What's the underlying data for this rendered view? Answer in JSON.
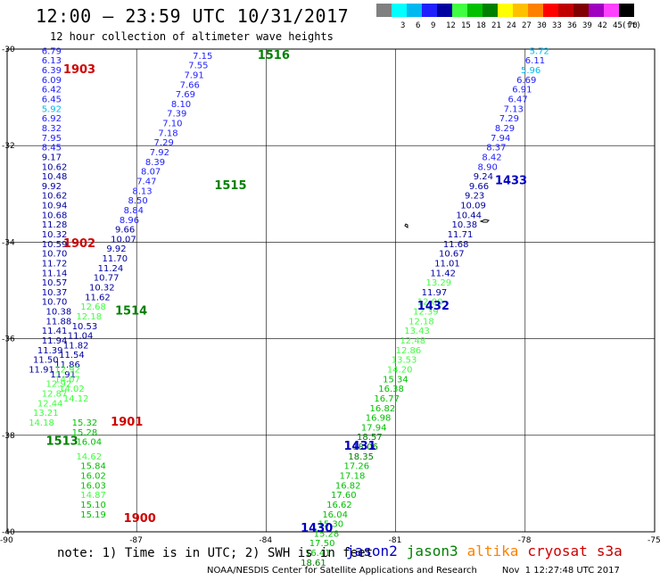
{
  "title": "12:00 – 23:59 UTC 10/31/2017",
  "subtitle": "12 hour collection of altimeter wave heights",
  "color_scale": {
    "unit": "(ft)",
    "bins": [
      {
        "label": "",
        "color": "#808080"
      },
      {
        "label": "3",
        "color": "#00ffff"
      },
      {
        "label": "6",
        "color": "#00b8f0"
      },
      {
        "label": "9",
        "color": "#2020ff"
      },
      {
        "label": "12",
        "color": "#0000a0"
      },
      {
        "label": "15",
        "color": "#40ff40"
      },
      {
        "label": "18",
        "color": "#00c000"
      },
      {
        "label": "21",
        "color": "#008000"
      },
      {
        "label": "24",
        "color": "#ffff00"
      },
      {
        "label": "27",
        "color": "#ffc000"
      },
      {
        "label": "30",
        "color": "#ff8000"
      },
      {
        "label": "33",
        "color": "#ff0000"
      },
      {
        "label": "36",
        "color": "#c00000"
      },
      {
        "label": "39",
        "color": "#800000"
      },
      {
        "label": "42",
        "color": "#a000c0"
      },
      {
        "label": "45",
        "color": "#ff40ff"
      },
      {
        "label": "70",
        "color": "#000000"
      }
    ]
  },
  "map": {
    "lon_range": [
      -90,
      -75
    ],
    "lat_range": [
      -40,
      -30
    ],
    "lon_ticks": [
      "-90",
      "-87",
      "-84",
      "-81",
      "-78",
      "-75"
    ],
    "lat_ticks": [
      "-30",
      "-32",
      "-34",
      "-36",
      "-38",
      "-40"
    ]
  },
  "chart_data": {
    "type": "scatter",
    "description_units": "significant wave height (ft) along satellite ground tracks",
    "pass_labels": [
      {
        "text": "1516",
        "color": "#008000",
        "lon": -84.2,
        "lat": -30.2
      },
      {
        "text": "1515",
        "color": "#008000",
        "lon": -85.2,
        "lat": -32.9
      },
      {
        "text": "1514",
        "color": "#008000",
        "lon": -87.5,
        "lat": -35.5
      },
      {
        "text": "1513",
        "color": "#008000",
        "lon": -89.1,
        "lat": -38.2
      },
      {
        "text": "1903",
        "color": "#d00000",
        "lon": -88.7,
        "lat": -30.5
      },
      {
        "text": "1902",
        "color": "#d00000",
        "lon": -88.7,
        "lat": -34.1
      },
      {
        "text": "1901",
        "color": "#d00000",
        "lon": -87.6,
        "lat": -37.8
      },
      {
        "text": "1900",
        "color": "#d00000",
        "lon": -87.3,
        "lat": -39.8
      },
      {
        "text": "1433",
        "color": "#0000c0",
        "lon": -78.7,
        "lat": -32.8
      },
      {
        "text": "1432",
        "color": "#0000c0",
        "lon": -80.5,
        "lat": -35.4
      },
      {
        "text": "1431",
        "color": "#0000c0",
        "lon": -82.2,
        "lat": -38.3
      },
      {
        "text": "1430",
        "color": "#0000c0",
        "lon": -83.2,
        "lat": -40.0
      }
    ],
    "tracks": [
      {
        "name": "jason3 1515-1516",
        "points": [
          {
            "lon": -85.7,
            "lat": -30.2,
            "v": "7.15"
          },
          {
            "lon": -85.8,
            "lat": -30.4,
            "v": "7.55"
          },
          {
            "lon": -85.9,
            "lat": -30.6,
            "v": "7.91"
          },
          {
            "lon": -86.0,
            "lat": -30.8,
            "v": "7.66"
          },
          {
            "lon": -86.1,
            "lat": -31.0,
            "v": "7.69"
          },
          {
            "lon": -86.2,
            "lat": -31.2,
            "v": "8.10"
          },
          {
            "lon": -86.3,
            "lat": -31.4,
            "v": "7.39"
          },
          {
            "lon": -86.4,
            "lat": -31.6,
            "v": "7.10"
          },
          {
            "lon": -86.5,
            "lat": -31.8,
            "v": "7.18"
          },
          {
            "lon": -86.6,
            "lat": -32.0,
            "v": "7.29"
          },
          {
            "lon": -86.7,
            "lat": -32.2,
            "v": "7.92"
          },
          {
            "lon": -86.8,
            "lat": -32.4,
            "v": "8.39"
          },
          {
            "lon": -86.9,
            "lat": -32.6,
            "v": "8.07"
          },
          {
            "lon": -87.0,
            "lat": -32.8,
            "v": "7.47"
          },
          {
            "lon": -87.1,
            "lat": -33.0,
            "v": "8.13"
          },
          {
            "lon": -87.2,
            "lat": -33.2,
            "v": "8.50"
          },
          {
            "lon": -87.3,
            "lat": -33.4,
            "v": "8.84"
          },
          {
            "lon": -87.4,
            "lat": -33.6,
            "v": "8.96"
          },
          {
            "lon": -87.5,
            "lat": -33.8,
            "v": "9.66"
          },
          {
            "lon": -87.6,
            "lat": -34.0,
            "v": "10.07"
          },
          {
            "lon": -87.7,
            "lat": -34.2,
            "v": "9.92"
          },
          {
            "lon": -87.8,
            "lat": -34.4,
            "v": "11.70"
          },
          {
            "lon": -87.9,
            "lat": -34.6,
            "v": "11.24"
          },
          {
            "lon": -88.0,
            "lat": -34.8,
            "v": "10.77"
          },
          {
            "lon": -88.1,
            "lat": -35.0,
            "v": "10.32"
          },
          {
            "lon": -88.2,
            "lat": -35.2,
            "v": "11.62"
          },
          {
            "lon": -88.3,
            "lat": -35.4,
            "v": "12.68"
          },
          {
            "lon": -88.4,
            "lat": -35.6,
            "v": "12.18"
          },
          {
            "lon": -88.5,
            "lat": -35.8,
            "v": "10.53"
          },
          {
            "lon": -88.6,
            "lat": -36.0,
            "v": "11.04"
          },
          {
            "lon": -88.7,
            "lat": -36.2,
            "v": "11.82"
          },
          {
            "lon": -88.8,
            "lat": -36.4,
            "v": "11.54"
          },
          {
            "lon": -88.9,
            "lat": -36.6,
            "v": "11.86"
          },
          {
            "lon": -89.0,
            "lat": -36.8,
            "v": "11.91"
          },
          {
            "lon": -89.1,
            "lat": -37.0,
            "v": "12.92"
          },
          {
            "lon": -89.2,
            "lat": -37.2,
            "v": "12.87"
          },
          {
            "lon": -89.3,
            "lat": -37.4,
            "v": "12.44"
          },
          {
            "lon": -89.4,
            "lat": -37.6,
            "v": "13.21"
          },
          {
            "lon": -89.5,
            "lat": -37.8,
            "v": "14.18"
          }
        ]
      },
      {
        "name": "jason2 1900-1903",
        "points": [
          {
            "lon": -89.2,
            "lat": -30.1,
            "v": "6.79"
          },
          {
            "lon": -89.2,
            "lat": -30.3,
            "v": "6.13"
          },
          {
            "lon": -89.2,
            "lat": -30.5,
            "v": "6.39"
          },
          {
            "lon": -89.2,
            "lat": -30.7,
            "v": "6.09"
          },
          {
            "lon": -89.2,
            "lat": -30.9,
            "v": "6.42"
          },
          {
            "lon": -89.2,
            "lat": -31.1,
            "v": "6.45"
          },
          {
            "lon": -89.2,
            "lat": -31.3,
            "v": "5.92"
          },
          {
            "lon": -89.2,
            "lat": -31.5,
            "v": "6.92"
          },
          {
            "lon": -89.2,
            "lat": -31.7,
            "v": "8.32"
          },
          {
            "lon": -89.2,
            "lat": -31.9,
            "v": "7.95"
          },
          {
            "lon": -89.2,
            "lat": -32.1,
            "v": "8.45"
          },
          {
            "lon": -89.2,
            "lat": -32.3,
            "v": "9.17"
          },
          {
            "lon": -89.2,
            "lat": -32.5,
            "v": "10.62"
          },
          {
            "lon": -89.2,
            "lat": -32.7,
            "v": "10.48"
          },
          {
            "lon": -89.2,
            "lat": -32.9,
            "v": "9.92"
          },
          {
            "lon": -89.2,
            "lat": -33.1,
            "v": "10.62"
          },
          {
            "lon": -89.2,
            "lat": -33.3,
            "v": "10.94"
          },
          {
            "lon": -89.2,
            "lat": -33.5,
            "v": "10.68"
          },
          {
            "lon": -89.2,
            "lat": -33.7,
            "v": "11.28"
          },
          {
            "lon": -89.2,
            "lat": -33.9,
            "v": "10.32"
          },
          {
            "lon": -89.2,
            "lat": -34.1,
            "v": "10.59"
          },
          {
            "lon": -89.2,
            "lat": -34.3,
            "v": "10.70"
          },
          {
            "lon": -89.2,
            "lat": -34.5,
            "v": "11.72"
          },
          {
            "lon": -89.2,
            "lat": -34.7,
            "v": "11.14"
          },
          {
            "lon": -89.2,
            "lat": -34.9,
            "v": "10.57"
          },
          {
            "lon": -89.2,
            "lat": -35.1,
            "v": "10.37"
          },
          {
            "lon": -89.2,
            "lat": -35.3,
            "v": "10.70"
          },
          {
            "lon": -89.1,
            "lat": -35.5,
            "v": "10.38"
          },
          {
            "lon": -89.1,
            "lat": -35.7,
            "v": "11.88"
          },
          {
            "lon": -89.2,
            "lat": -35.9,
            "v": "11.41"
          },
          {
            "lon": -89.2,
            "lat": -36.1,
            "v": "11.94"
          },
          {
            "lon": -89.3,
            "lat": -36.3,
            "v": "11.39"
          },
          {
            "lon": -89.4,
            "lat": -36.5,
            "v": "11.50"
          },
          {
            "lon": -89.5,
            "lat": -36.7,
            "v": "11.91"
          },
          {
            "lon": -88.5,
            "lat": -37.8,
            "v": "15.32"
          },
          {
            "lon": -88.5,
            "lat": -38.0,
            "v": "15.28"
          },
          {
            "lon": -88.4,
            "lat": -38.2,
            "v": "16.04"
          },
          {
            "lon": -88.4,
            "lat": -38.5,
            "v": "14.62"
          },
          {
            "lon": -88.3,
            "lat": -38.7,
            "v": "15.84"
          },
          {
            "lon": -88.3,
            "lat": -38.9,
            "v": "16.02"
          },
          {
            "lon": -88.3,
            "lat": -39.1,
            "v": "16.03"
          },
          {
            "lon": -88.3,
            "lat": -39.3,
            "v": "14.87"
          },
          {
            "lon": -88.3,
            "lat": -39.5,
            "v": "15.10"
          },
          {
            "lon": -88.3,
            "lat": -39.7,
            "v": "15.19"
          }
        ]
      },
      {
        "name": "jason2 1900 mid",
        "points": [
          {
            "lon": -88.9,
            "lat": -36.7,
            "v": "12.92"
          },
          {
            "lon": -88.9,
            "lat": -36.9,
            "v": "14.07"
          },
          {
            "lon": -88.8,
            "lat": -37.1,
            "v": "14.02"
          },
          {
            "lon": -88.7,
            "lat": -37.3,
            "v": "14.12"
          }
        ]
      },
      {
        "name": "jason2 1430-1433",
        "points": [
          {
            "lon": -77.9,
            "lat": -30.1,
            "v": "5.72"
          },
          {
            "lon": -78.0,
            "lat": -30.3,
            "v": "6.11"
          },
          {
            "lon": -78.1,
            "lat": -30.5,
            "v": "5.96"
          },
          {
            "lon": -78.2,
            "lat": -30.7,
            "v": "6.69"
          },
          {
            "lon": -78.3,
            "lat": -30.9,
            "v": "6.91"
          },
          {
            "lon": -78.4,
            "lat": -31.1,
            "v": "6.47"
          },
          {
            "lon": -78.5,
            "lat": -31.3,
            "v": "7.13"
          },
          {
            "lon": -78.6,
            "lat": -31.5,
            "v": "7.29"
          },
          {
            "lon": -78.7,
            "lat": -31.7,
            "v": "8.29"
          },
          {
            "lon": -78.8,
            "lat": -31.9,
            "v": "7.94"
          },
          {
            "lon": -78.9,
            "lat": -32.1,
            "v": "8.37"
          },
          {
            "lon": -79.0,
            "lat": -32.3,
            "v": "8.42"
          },
          {
            "lon": -79.1,
            "lat": -32.5,
            "v": "8.90"
          },
          {
            "lon": -79.2,
            "lat": -32.7,
            "v": "9.24"
          },
          {
            "lon": -79.3,
            "lat": -32.9,
            "v": "9.66"
          },
          {
            "lon": -79.4,
            "lat": -33.1,
            "v": "9.23"
          },
          {
            "lon": -79.5,
            "lat": -33.3,
            "v": "10.09"
          },
          {
            "lon": -79.6,
            "lat": -33.5,
            "v": "10.44"
          },
          {
            "lon": -79.7,
            "lat": -33.7,
            "v": "10.38"
          },
          {
            "lon": -79.8,
            "lat": -33.9,
            "v": "11.71"
          },
          {
            "lon": -79.9,
            "lat": -34.1,
            "v": "11.68"
          },
          {
            "lon": -80.0,
            "lat": -34.3,
            "v": "10.67"
          },
          {
            "lon": -80.1,
            "lat": -34.5,
            "v": "11.01"
          },
          {
            "lon": -80.2,
            "lat": -34.7,
            "v": "11.42"
          },
          {
            "lon": -80.3,
            "lat": -34.9,
            "v": "13.29"
          },
          {
            "lon": -80.4,
            "lat": -35.1,
            "v": "11.97"
          },
          {
            "lon": -80.5,
            "lat": -35.3,
            "v": "12.00"
          },
          {
            "lon": -80.6,
            "lat": -35.5,
            "v": "12.39"
          },
          {
            "lon": -80.7,
            "lat": -35.7,
            "v": "12.18"
          },
          {
            "lon": -80.8,
            "lat": -35.9,
            "v": "13.43"
          },
          {
            "lon": -80.9,
            "lat": -36.1,
            "v": "12.48"
          },
          {
            "lon": -81.0,
            "lat": -36.3,
            "v": "12.86"
          },
          {
            "lon": -81.1,
            "lat": -36.5,
            "v": "13.53"
          },
          {
            "lon": -81.2,
            "lat": -36.7,
            "v": "14.20"
          },
          {
            "lon": -81.3,
            "lat": -36.9,
            "v": "15.34"
          },
          {
            "lon": -81.4,
            "lat": -37.1,
            "v": "16.38"
          },
          {
            "lon": -81.5,
            "lat": -37.3,
            "v": "16.77"
          },
          {
            "lon": -81.6,
            "lat": -37.5,
            "v": "16.82"
          },
          {
            "lon": -81.7,
            "lat": -37.7,
            "v": "16.98"
          },
          {
            "lon": -81.8,
            "lat": -37.9,
            "v": "17.94"
          },
          {
            "lon": -81.9,
            "lat": -38.1,
            "v": "18.57"
          },
          {
            "lon": -82.0,
            "lat": -38.3,
            "v": "18.06"
          },
          {
            "lon": -82.1,
            "lat": -38.5,
            "v": "18.35"
          },
          {
            "lon": -82.2,
            "lat": -38.7,
            "v": "17.26"
          },
          {
            "lon": -82.3,
            "lat": -38.9,
            "v": "17.18"
          },
          {
            "lon": -82.4,
            "lat": -39.1,
            "v": "16.82"
          },
          {
            "lon": -82.5,
            "lat": -39.3,
            "v": "17.60"
          },
          {
            "lon": -82.6,
            "lat": -39.5,
            "v": "16.62"
          },
          {
            "lon": -82.7,
            "lat": -39.7,
            "v": "16.04"
          },
          {
            "lon": -82.8,
            "lat": -39.9,
            "v": "15.30"
          },
          {
            "lon": -82.9,
            "lat": -40.1,
            "v": "15.28"
          },
          {
            "lon": -83.0,
            "lat": -40.3,
            "v": "17.50"
          },
          {
            "lon": -83.1,
            "lat": -40.5,
            "v": "16.41"
          },
          {
            "lon": -83.2,
            "lat": -40.7,
            "v": "18.61"
          }
        ]
      }
    ]
  },
  "note": "note: 1) Time is in UTC; 2) SWH is in feet",
  "legend": [
    {
      "label": "jason2",
      "color": "#0000c0"
    },
    {
      "label": "jason3",
      "color": "#008000"
    },
    {
      "label": "altika",
      "color": "#ff8000"
    },
    {
      "label": "cryosat",
      "color": "#d00000"
    },
    {
      "label": "s3a",
      "color": "#c00000"
    }
  ],
  "footer": {
    "credit": "NOAA/NESDIS Center for Satellite Applications and Research",
    "timestamp": "Nov  1 12:27:48 UTC 2017"
  }
}
